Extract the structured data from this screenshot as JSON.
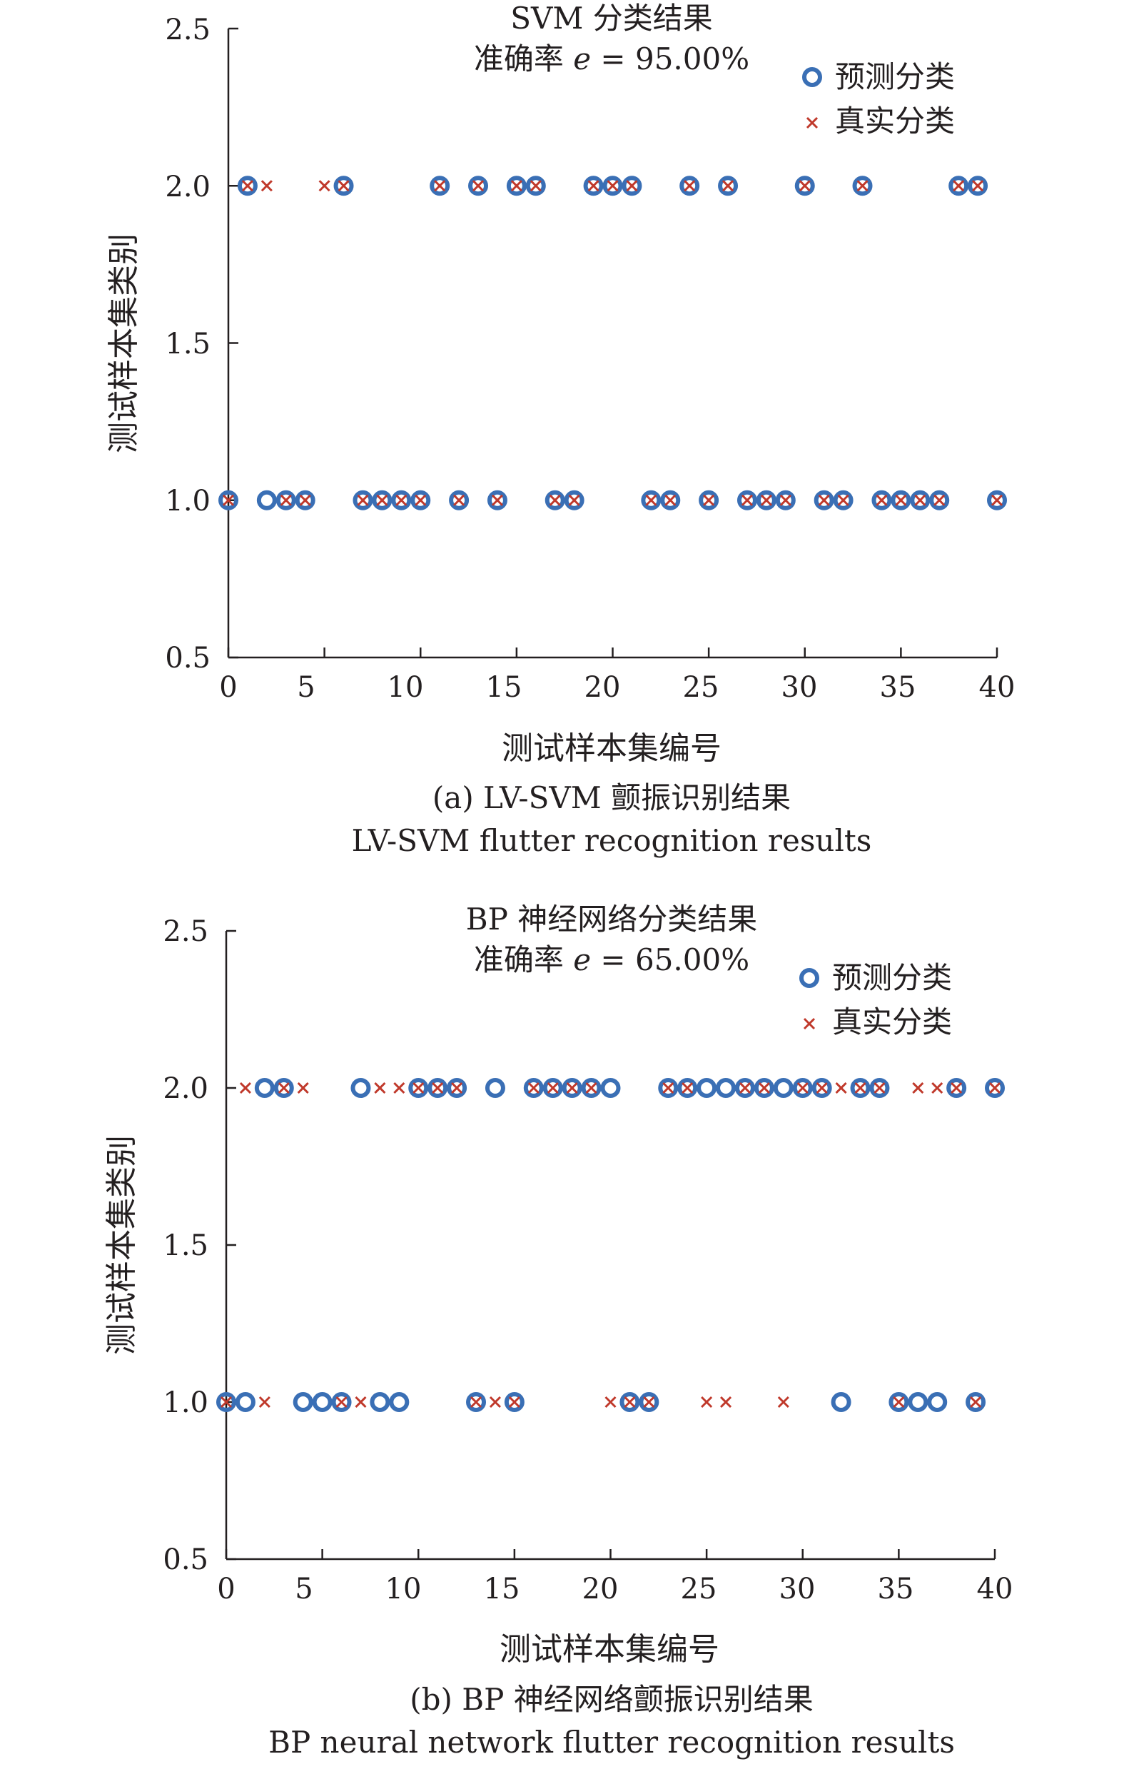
{
  "chart_data": [
    {
      "type": "scatter",
      "title": "SVM 分类结果",
      "subtitle": "准确率 e = 95.00%",
      "subtitle_parts": [
        "准确率 ",
        "e",
        " = 95.00%"
      ],
      "xlabel": "测试样本集编号",
      "ylabel": "测试样本集类别",
      "caption": "(a) LV-SVM 颤振识别结果",
      "caption_en": "LV-SVM flutter recognition results",
      "xlim": [
        0,
        40
      ],
      "ylim": [
        0.5,
        2.5
      ],
      "xticks": [
        "0",
        "5",
        "10",
        "15",
        "20",
        "25",
        "30",
        "35",
        "40"
      ],
      "yticks": [
        "0.5",
        "1.0",
        "1.5",
        "2.0",
        "2.5"
      ],
      "legend_position": "top-right",
      "x": [
        0,
        1,
        2,
        3,
        4,
        5,
        6,
        7,
        8,
        9,
        10,
        11,
        12,
        13,
        14,
        15,
        16,
        17,
        18,
        19,
        20,
        21,
        22,
        23,
        24,
        25,
        26,
        27,
        28,
        29,
        30,
        31,
        32,
        33,
        34,
        35,
        36,
        37,
        38,
        39,
        40
      ],
      "series": [
        {
          "name": "预测分类",
          "marker": "circle",
          "color": "#3a6fb5",
          "values": [
            1,
            2,
            1,
            1,
            1,
            null,
            2,
            1,
            1,
            1,
            1,
            2,
            1,
            2,
            1,
            2,
            2,
            1,
            1,
            2,
            2,
            2,
            1,
            1,
            2,
            1,
            2,
            1,
            1,
            1,
            2,
            1,
            1,
            2,
            1,
            1,
            1,
            1,
            2,
            2,
            1
          ]
        },
        {
          "name": "真实分类",
          "marker": "x",
          "color": "#c0392b",
          "values": [
            1,
            2,
            2,
            1,
            1,
            2,
            2,
            1,
            1,
            1,
            1,
            2,
            1,
            2,
            1,
            2,
            2,
            1,
            1,
            2,
            2,
            2,
            1,
            1,
            2,
            1,
            2,
            1,
            1,
            1,
            2,
            1,
            1,
            2,
            1,
            1,
            1,
            1,
            2,
            2,
            1
          ]
        }
      ]
    },
    {
      "type": "scatter",
      "title": "BP 神经网络分类结果",
      "subtitle": "准确率 e = 65.00%",
      "subtitle_parts": [
        "准确率 ",
        "e",
        " = 65.00%"
      ],
      "xlabel": "测试样本集编号",
      "ylabel": "测试样本集类别",
      "caption": "(b) BP 神经网络颤振识别结果",
      "caption_en": "BP neural network flutter recognition results",
      "xlim": [
        0,
        40
      ],
      "ylim": [
        0.5,
        2.5
      ],
      "xticks": [
        "0",
        "5",
        "10",
        "15",
        "20",
        "25",
        "30",
        "35",
        "40"
      ],
      "yticks": [
        "0.5",
        "1.0",
        "1.5",
        "2.0",
        "2.5"
      ],
      "legend_position": "top-right",
      "x": [
        0,
        1,
        2,
        3,
        4,
        5,
        6,
        7,
        8,
        9,
        10,
        11,
        12,
        13,
        14,
        15,
        16,
        17,
        18,
        19,
        20,
        21,
        22,
        23,
        24,
        25,
        26,
        27,
        28,
        29,
        30,
        31,
        32,
        33,
        34,
        35,
        36,
        37,
        38,
        39,
        40
      ],
      "series": [
        {
          "name": "预测分类",
          "marker": "circle",
          "color": "#3a6fb5",
          "values": [
            1,
            1,
            2,
            2,
            1,
            1,
            1,
            2,
            1,
            1,
            2,
            2,
            2,
            1,
            2,
            1,
            2,
            2,
            2,
            2,
            2,
            1,
            1,
            2,
            2,
            2,
            2,
            2,
            2,
            2,
            2,
            2,
            1,
            2,
            2,
            1,
            1,
            1,
            2,
            1,
            2
          ]
        },
        {
          "name": "真实分类",
          "marker": "x",
          "color": "#c0392b",
          "values": [
            1,
            2,
            1,
            2,
            2,
            null,
            1,
            1,
            2,
            2,
            2,
            2,
            2,
            1,
            1,
            1,
            2,
            2,
            2,
            2,
            1,
            1,
            1,
            2,
            2,
            1,
            1,
            2,
            2,
            1,
            2,
            2,
            2,
            2,
            2,
            1,
            2,
            2,
            2,
            1,
            2
          ]
        }
      ]
    }
  ]
}
